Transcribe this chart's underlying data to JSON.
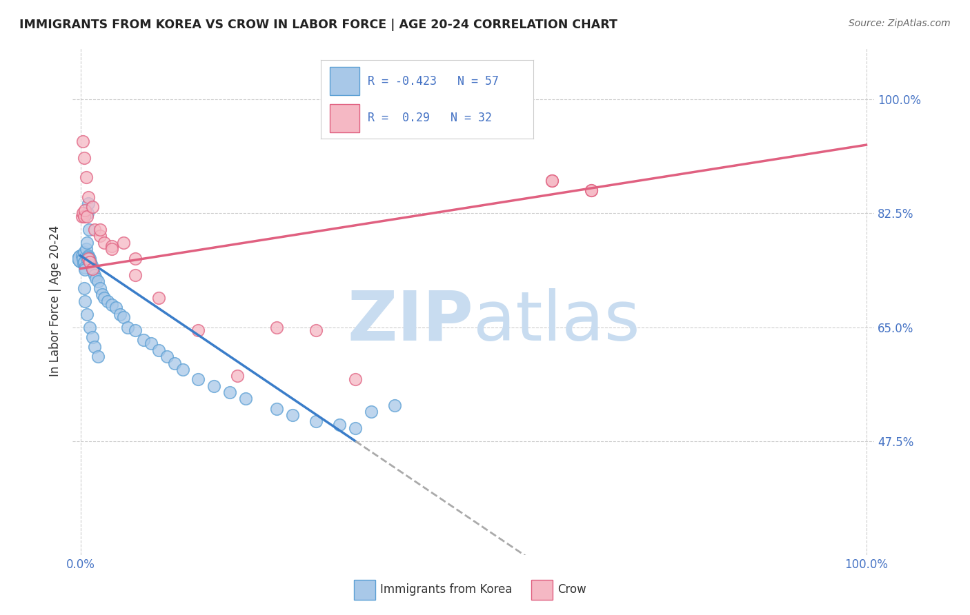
{
  "title": "IMMIGRANTS FROM KOREA VS CROW IN LABOR FORCE | AGE 20-24 CORRELATION CHART",
  "source": "Source: ZipAtlas.com",
  "ylabel": "In Labor Force | Age 20-24",
  "R1": -0.423,
  "N1": 57,
  "R2": 0.29,
  "N2": 32,
  "color_blue_fill": "#A8C8E8",
  "color_blue_edge": "#5A9FD4",
  "color_pink_fill": "#F5B8C4",
  "color_pink_edge": "#E06080",
  "color_blue_line": "#3A7DC9",
  "color_pink_line": "#E06080",
  "color_dashed": "#AAAAAA",
  "watermark_color": "#C8DCF0",
  "legend_label1": "Immigrants from Korea",
  "legend_label2": "Crow",
  "yticks": [
    47.5,
    65.0,
    82.5,
    100.0
  ],
  "xlim": [
    0,
    100
  ],
  "ylim": [
    30,
    108
  ],
  "blue_x": [
    0.2,
    0.3,
    0.4,
    0.5,
    0.5,
    0.6,
    0.6,
    0.7,
    0.8,
    0.8,
    0.9,
    1.0,
    1.0,
    1.0,
    1.1,
    1.2,
    1.3,
    1.4,
    1.5,
    1.6,
    1.8,
    2.0,
    2.2,
    2.5,
    2.8,
    3.0,
    3.5,
    4.0,
    4.5,
    5.0,
    5.5,
    6.0,
    7.0,
    8.0,
    9.0,
    10.0,
    11.0,
    12.0,
    13.0,
    15.0,
    17.0,
    19.0,
    21.0,
    25.0,
    27.0,
    30.0,
    33.0,
    35.0,
    37.0,
    40.0,
    0.5,
    0.6,
    0.8,
    1.2,
    1.5,
    1.8,
    2.2
  ],
  "blue_y": [
    76.0,
    75.5,
    74.8,
    76.5,
    75.0,
    74.2,
    73.8,
    77.0,
    78.0,
    75.5,
    82.5,
    84.0,
    76.0,
    75.8,
    80.0,
    75.5,
    75.0,
    74.5,
    74.0,
    73.5,
    73.0,
    72.5,
    72.0,
    71.0,
    70.0,
    69.5,
    69.0,
    68.5,
    68.0,
    67.0,
    66.5,
    65.0,
    64.5,
    63.0,
    62.5,
    61.5,
    60.5,
    59.5,
    58.5,
    57.0,
    56.0,
    55.0,
    54.0,
    52.5,
    51.5,
    50.5,
    50.0,
    49.5,
    52.0,
    53.0,
    71.0,
    69.0,
    67.0,
    65.0,
    63.5,
    62.0,
    60.5
  ],
  "pink_x": [
    0.2,
    0.3,
    0.5,
    0.6,
    0.8,
    1.0,
    1.2,
    1.5,
    1.8,
    2.5,
    3.0,
    4.0,
    5.5,
    7.0,
    25.0,
    30.0,
    60.0,
    65.0,
    0.3,
    0.5,
    0.7,
    1.0,
    1.5,
    2.5,
    4.0,
    7.0,
    10.0,
    15.0,
    20.0,
    35.0,
    60.0,
    65.0
  ],
  "pink_y": [
    82.0,
    82.5,
    82.0,
    83.0,
    82.0,
    75.5,
    75.0,
    74.0,
    80.0,
    79.0,
    78.0,
    77.5,
    78.0,
    75.5,
    65.0,
    64.5,
    87.5,
    86.0,
    93.5,
    91.0,
    88.0,
    85.0,
    83.5,
    80.0,
    77.0,
    73.0,
    69.5,
    64.5,
    57.5,
    57.0,
    87.5,
    86.0
  ]
}
